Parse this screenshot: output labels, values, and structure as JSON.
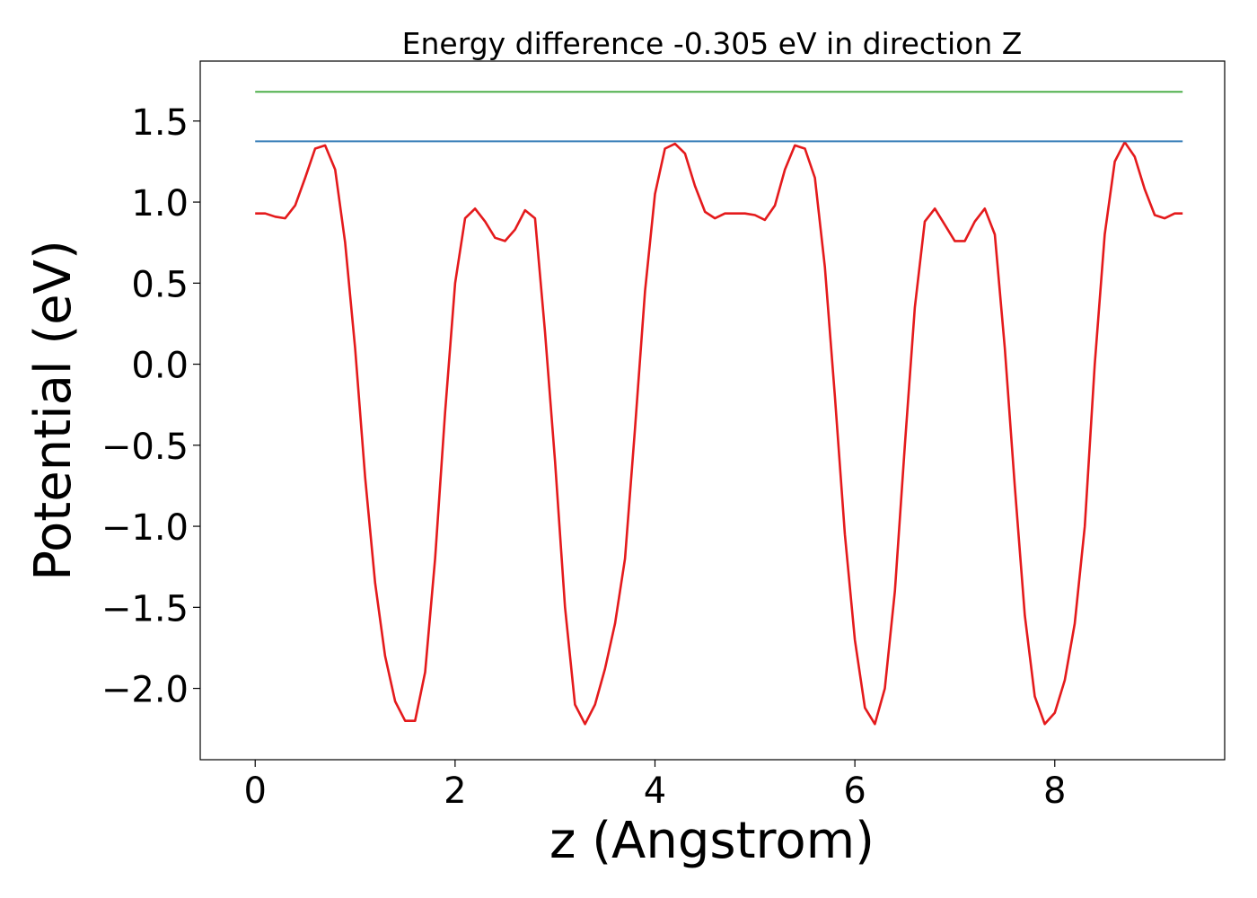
{
  "chart_data": {
    "type": "line",
    "title": "Energy difference -0.305 eV in direction Z",
    "xlabel": "z (Angstrom)",
    "ylabel": "Potential (eV)",
    "xlim": [
      -0.55,
      9.7
    ],
    "ylim": [
      -2.44,
      1.87
    ],
    "xticks": [
      0,
      2,
      4,
      6,
      8
    ],
    "xtick_labels": [
      "0",
      "2",
      "4",
      "6",
      "8"
    ],
    "yticks": [
      1.5,
      1.0,
      0.5,
      0.0,
      -0.5,
      -1.0,
      -1.5,
      -2.0
    ],
    "ytick_labels": [
      "1.5",
      "1.0",
      "0.5",
      "0.0",
      "−0.5",
      "−1.0",
      "−1.5",
      "−2.0"
    ],
    "grid": false,
    "legend": "none",
    "series": [
      {
        "color": "#e41a1c",
        "x": [
          0.0,
          0.1,
          0.2,
          0.3,
          0.4,
          0.5,
          0.6,
          0.7,
          0.8,
          0.9,
          1.0,
          1.1,
          1.2,
          1.3,
          1.4,
          1.5,
          1.6,
          1.7,
          1.8,
          1.9,
          2.0,
          2.1,
          2.2,
          2.3,
          2.4,
          2.5,
          2.6,
          2.7,
          2.8,
          2.9,
          3.0,
          3.1,
          3.2,
          3.3,
          3.4,
          3.5,
          3.6,
          3.7,
          3.8,
          3.9,
          4.0,
          4.1,
          4.2,
          4.3,
          4.4,
          4.5,
          4.6,
          4.7,
          4.8,
          4.9,
          5.0,
          5.1,
          5.2,
          5.3,
          5.4,
          5.5,
          5.6,
          5.7,
          5.8,
          5.9,
          6.0,
          6.1,
          6.2,
          6.3,
          6.4,
          6.5,
          6.6,
          6.7,
          6.8,
          6.9,
          7.0,
          7.1,
          7.2,
          7.3,
          7.4,
          7.5,
          7.6,
          7.7,
          7.8,
          7.9,
          8.0,
          8.1,
          8.2,
          8.3,
          8.4,
          8.5,
          8.6,
          8.7,
          8.8,
          8.9,
          9.0,
          9.1,
          9.2,
          9.28
        ],
        "y": [
          0.93,
          0.93,
          0.91,
          0.9,
          0.98,
          1.15,
          1.33,
          1.35,
          1.2,
          0.75,
          0.1,
          -0.7,
          -1.35,
          -1.8,
          -2.08,
          -2.2,
          -2.2,
          -1.9,
          -1.2,
          -0.3,
          0.5,
          0.9,
          0.96,
          0.88,
          0.78,
          0.76,
          0.83,
          0.95,
          0.9,
          0.2,
          -0.6,
          -1.5,
          -2.1,
          -2.22,
          -2.1,
          -1.88,
          -1.6,
          -1.2,
          -0.4,
          0.45,
          1.05,
          1.33,
          1.36,
          1.3,
          1.1,
          0.94,
          0.9,
          0.93,
          0.93,
          0.93,
          0.92,
          0.89,
          0.98,
          1.2,
          1.35,
          1.33,
          1.15,
          0.6,
          -0.2,
          -1.05,
          -1.7,
          -2.12,
          -2.22,
          -2.0,
          -1.4,
          -0.5,
          0.35,
          0.88,
          0.96,
          0.86,
          0.76,
          0.76,
          0.88,
          0.96,
          0.8,
          0.1,
          -0.75,
          -1.55,
          -2.05,
          -2.22,
          -2.15,
          -1.95,
          -1.6,
          -1.0,
          0.0,
          0.8,
          1.25,
          1.37,
          1.28,
          1.08,
          0.92,
          0.9,
          0.93,
          0.93
        ]
      },
      {
        "color": "#377eb8",
        "x": [
          0.0,
          9.28
        ],
        "y": [
          1.375,
          1.375
        ]
      },
      {
        "color": "#4daf4a",
        "x": [
          0.0,
          9.28
        ],
        "y": [
          1.68,
          1.68
        ]
      }
    ]
  }
}
